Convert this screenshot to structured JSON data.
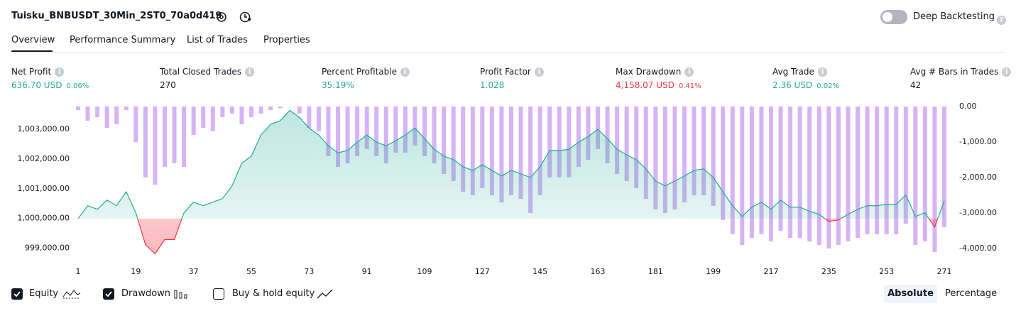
{
  "header": {
    "title": "Tuisku_BNBUSDT_30Min_2ST0_70a0d419",
    "toggle_label": "Deep Backtesting"
  },
  "tabs": [
    "Overview",
    "Performance Summary",
    "List of Trades",
    "Properties"
  ],
  "metrics": [
    {
      "label": "Net Profit",
      "value": "636.70 USD",
      "percent": "0.06%",
      "color": "#22ab94"
    },
    {
      "label": "Total Closed Trades",
      "value": "270",
      "color": "#131722"
    },
    {
      "label": "Percent Profitable",
      "value": "35.19%",
      "color": "#22ab94"
    },
    {
      "label": "Profit Factor",
      "value": "1.028",
      "color": "#22ab94"
    },
    {
      "label": "Max Drawdown",
      "value": "4,158.07 USD",
      "percent": "0.41%",
      "color": "#f23645"
    },
    {
      "label": "Avg Trade",
      "value": "2.36 USD",
      "percent": "0.02%",
      "color": "#22ab94"
    },
    {
      "label": "Avg # Bars in Trades",
      "value": "42",
      "color": "#131722"
    }
  ],
  "chart_data": {
    "type": "equity",
    "x": [
      1,
      4,
      7,
      10,
      13,
      16,
      19,
      22,
      25,
      28,
      31,
      34,
      37,
      40,
      43,
      46,
      49,
      52,
      55,
      58,
      61,
      64,
      67,
      70,
      73,
      76,
      79,
      82,
      85,
      88,
      91,
      94,
      97,
      100,
      103,
      106,
      109,
      112,
      115,
      118,
      121,
      124,
      127,
      130,
      133,
      136,
      139,
      142,
      145,
      148,
      151,
      154,
      157,
      160,
      163,
      166,
      169,
      172,
      175,
      178,
      181,
      184,
      187,
      190,
      193,
      196,
      199,
      202,
      205,
      208,
      211,
      214,
      217,
      220,
      223,
      226,
      229,
      232,
      235,
      238,
      241,
      244,
      247,
      250,
      253,
      256,
      259,
      262,
      265,
      268,
      271
    ],
    "series": [
      {
        "name": "Equity",
        "color": "#22ab94",
        "negative_color": "#f23645",
        "values": [
          1000000,
          1000430,
          1000310,
          1000620,
          1000430,
          1000900,
          1000190,
          999120,
          998810,
          999290,
          999290,
          1000190,
          1000550,
          1000430,
          1000550,
          1000670,
          1001100,
          1001860,
          1002100,
          1002810,
          1003170,
          1003290,
          1003640,
          1003400,
          1003050,
          1002810,
          1002450,
          1002210,
          1002290,
          1002570,
          1002810,
          1002570,
          1002450,
          1002620,
          1002810,
          1003050,
          1002690,
          1002330,
          1002100,
          1001980,
          1001740,
          1001620,
          1001810,
          1001620,
          1001430,
          1001620,
          1001500,
          1001380,
          1001740,
          1002290,
          1002290,
          1002330,
          1002570,
          1002760,
          1003000,
          1002690,
          1002330,
          1002140,
          1001980,
          1001670,
          1001260,
          1001100,
          1001260,
          1001430,
          1001620,
          1001670,
          1001380,
          1000900,
          1000430,
          1000070,
          1000380,
          1000550,
          1000310,
          1000620,
          1000380,
          1000380,
          1000240,
          1000140,
          999900,
          999950,
          1000140,
          1000310,
          1000430,
          1000430,
          1000480,
          1000480,
          1000790,
          1000070,
          1000190,
          999710,
          1000600
        ]
      },
      {
        "name": "Drawdown",
        "color": "#d7b3f5",
        "axis": "y2",
        "values": [
          -100,
          -400,
          -300,
          -600,
          -500,
          -100,
          -1000,
          -2000,
          -2200,
          -1700,
          -1600,
          -1700,
          -800,
          -600,
          -700,
          -300,
          -200,
          -500,
          -300,
          -200,
          -100,
          -50,
          0,
          -200,
          -600,
          -700,
          -1400,
          -1700,
          -1600,
          -1400,
          -1200,
          -1400,
          -1600,
          -1300,
          -1300,
          -1100,
          -1400,
          -1600,
          -1900,
          -2100,
          -2400,
          -2500,
          -2300,
          -2500,
          -2700,
          -2500,
          -2600,
          -3000,
          -2500,
          -2000,
          -2000,
          -2000,
          -1700,
          -1500,
          -1200,
          -1600,
          -1900,
          -2100,
          -2300,
          -2600,
          -2900,
          -3000,
          -2900,
          -2700,
          -2500,
          -2500,
          -2800,
          -3200,
          -3600,
          -3900,
          -3700,
          -3600,
          -3800,
          -3500,
          -3700,
          -3700,
          -3800,
          -3900,
          -4000,
          -3900,
          -3800,
          -3700,
          -3600,
          -3600,
          -3600,
          -3600,
          -3300,
          -3900,
          -3800,
          -4100,
          -3400
        ]
      }
    ],
    "xlim": [
      1,
      271
    ],
    "xticks": [
      1,
      19,
      37,
      55,
      73,
      91,
      109,
      127,
      145,
      163,
      181,
      199,
      217,
      235,
      253,
      271
    ],
    "ylim": [
      998750,
      1003770
    ],
    "yticks": [
      {
        "value": 999000,
        "label": "999,000.00"
      },
      {
        "value": 1000000,
        "label": "1,000,000.00"
      },
      {
        "value": 1001000,
        "label": "1,001,000.00"
      },
      {
        "value": 1002000,
        "label": "1,002,000.00"
      },
      {
        "value": 1003000,
        "label": "1,003,000.00"
      }
    ],
    "y2lim": [
      -4200,
      0
    ],
    "y2ticks": [
      {
        "value": 0,
        "label": "0.00"
      },
      {
        "value": -1000,
        "label": "-1,000.00"
      },
      {
        "value": -2000,
        "label": "-2,000.00"
      },
      {
        "value": -3000,
        "label": "-3,000.00"
      },
      {
        "value": -4000,
        "label": "-4,000.00"
      }
    ]
  },
  "controls": {
    "buy_hold_label": "Buy & hold equity",
    "modes": [
      "Absolute",
      "Percentage"
    ]
  }
}
